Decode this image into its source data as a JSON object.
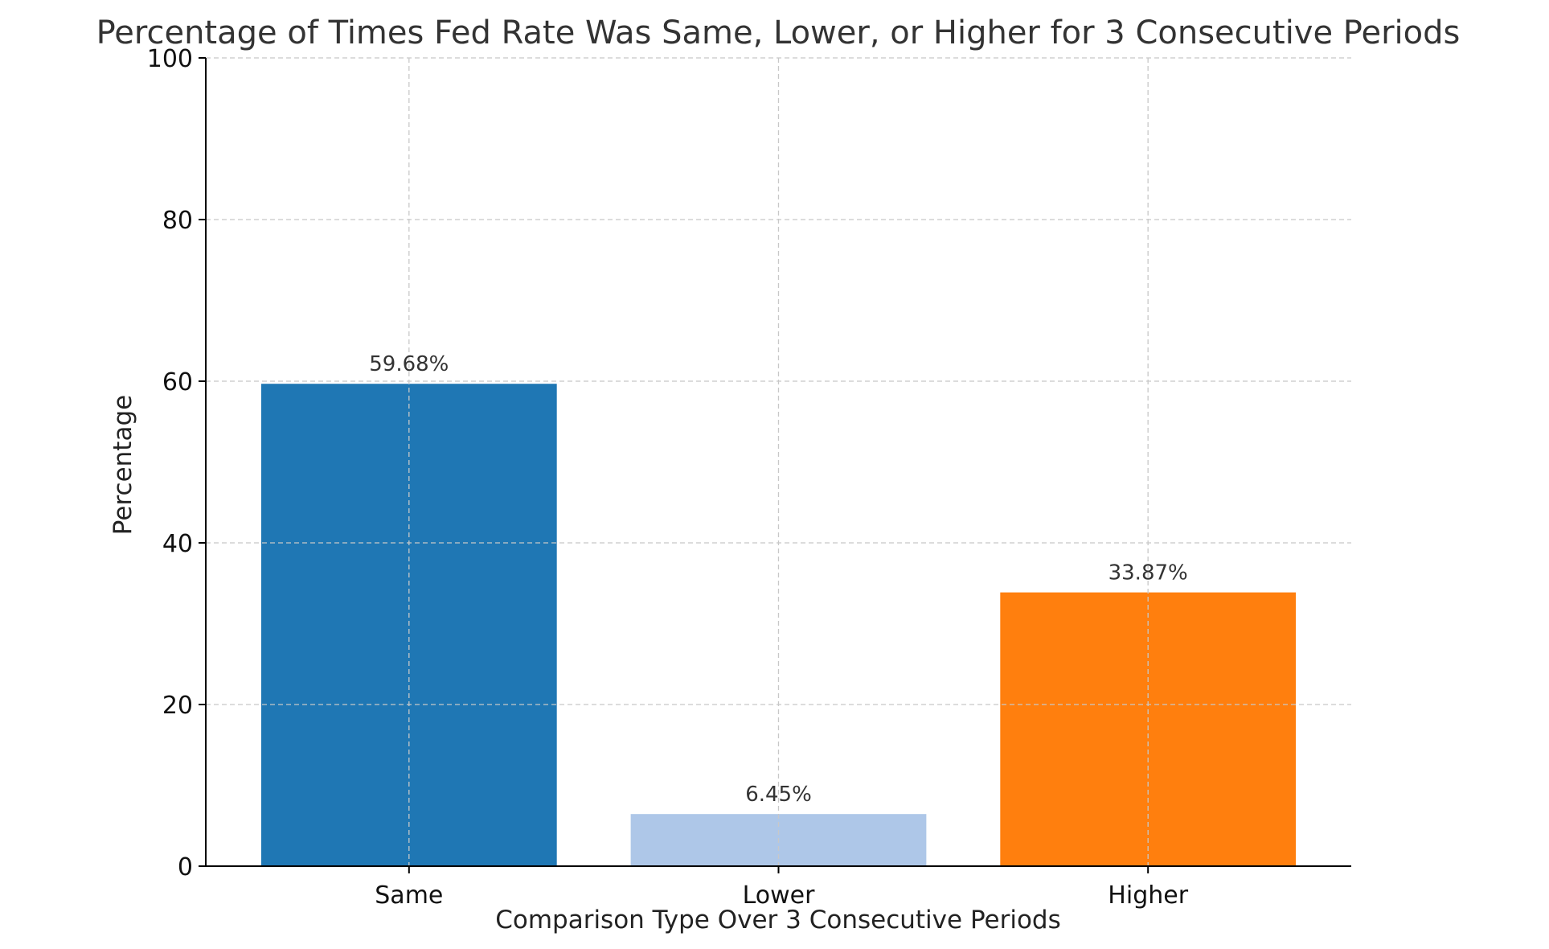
{
  "chart_data": {
    "type": "bar",
    "title": "Percentage of Times Fed Rate Was Same, Lower, or Higher for 3 Consecutive Periods",
    "xlabel": "Comparison Type Over 3 Consecutive Periods",
    "ylabel": "Percentage",
    "categories": [
      "Same",
      "Lower",
      "Higher"
    ],
    "values": [
      59.68,
      6.45,
      33.87
    ],
    "value_labels": [
      "59.68%",
      "6.45%",
      "33.87%"
    ],
    "colors": [
      "#1f77b4",
      "#aec7e8",
      "#ff7f0e"
    ],
    "ylim": [
      0,
      100
    ],
    "yticks": [
      0,
      20,
      40,
      60,
      80,
      100
    ],
    "grid": true,
    "grid_style": "dashed"
  }
}
